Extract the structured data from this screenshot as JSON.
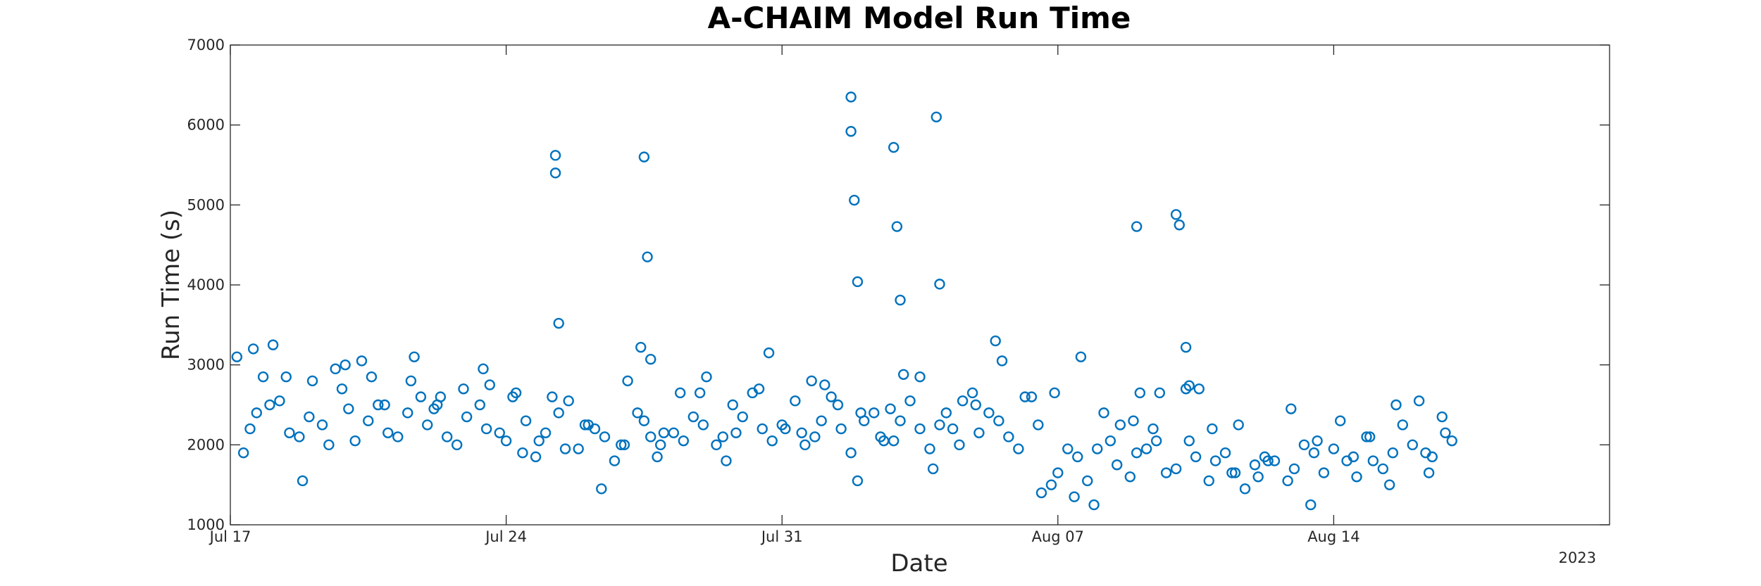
{
  "chart_data": {
    "type": "scatter",
    "title": "A-CHAIM Model Run Time",
    "xlabel": "Date",
    "ylabel": "Run Time (s)",
    "year_label": "2023",
    "xlim": [
      "2023-07-17",
      "2023-08-21"
    ],
    "ylim": [
      1000,
      7000
    ],
    "x_ticks": [
      {
        "date": "2023-07-17",
        "label": "Jul 17"
      },
      {
        "date": "2023-07-24",
        "label": "Jul 24"
      },
      {
        "date": "2023-07-31",
        "label": "Jul 31"
      },
      {
        "date": "2023-08-07",
        "label": "Aug 07"
      },
      {
        "date": "2023-08-14",
        "label": "Aug 14"
      }
    ],
    "y_ticks": [
      1000,
      2000,
      3000,
      4000,
      5000,
      6000,
      7000
    ],
    "grid": false,
    "marker": "open-circle",
    "marker_color": "#0072BD",
    "series": [
      {
        "x": [
          "2023-07-17 12:00",
          "2023-07-18 00:00",
          "2023-07-18 12:00",
          "2023-07-19 00:00",
          "2023-07-19 12:00",
          "2023-07-20 00:00",
          "2023-07-20 12:00",
          "2023-07-21 00:00",
          "2023-07-21 12:00",
          "2023-07-22 00:00",
          "2023-07-22 12:00",
          "2023-07-23 00:00",
          "2023-07-23 12:00",
          "2023-07-24 00:00",
          "2023-07-24 12:00",
          "2023-07-25 00:00",
          "2023-07-25 12:00",
          "2023-07-26 00:00",
          "2023-07-26 12:00",
          "2023-07-27 00:00",
          "2023-07-27 12:00",
          "2023-07-28 00:00",
          "2023-07-28 12:00",
          "2023-07-29 00:00",
          "2023-07-29 12:00",
          "2023-07-30 00:00",
          "2023-07-30 12:00",
          "2023-07-31 00:00",
          "2023-07-31 12:00",
          "2023-08-01 00:00",
          "2023-08-01 12:00",
          "2023-08-02 00:00",
          "2023-08-02 12:00",
          "2023-08-03 00:00",
          "2023-08-03 12:00",
          "2023-08-04 00:00",
          "2023-08-04 12:00",
          "2023-08-05 00:00",
          "2023-08-05 12:00",
          "2023-08-06 00:00",
          "2023-08-06 12:00",
          "2023-08-07 00:00",
          "2023-08-07 12:00",
          "2023-08-08 00:00",
          "2023-08-08 12:00",
          "2023-08-09 00:00",
          "2023-08-09 12:00",
          "2023-08-10 00:00",
          "2023-08-10 12:00",
          "2023-08-11 00:00",
          "2023-08-11 12:00",
          "2023-08-12 00:00",
          "2023-08-12 12:00",
          "2023-08-13 00:00",
          "2023-08-13 12:00",
          "2023-08-14 00:00",
          "2023-08-14 12:00",
          "2023-08-15 00:00",
          "2023-08-15 12:00",
          "2023-08-16 00:00",
          "2023-08-16 12:00",
          "2023-08-17 00:00"
        ],
        "y": [
          2200,
          2500,
          2150,
          2350,
          2000,
          2450,
          2300,
          2150,
          2400,
          2250,
          2100,
          2350,
          2200,
          2050,
          2300,
          2150,
          1950,
          2250,
          2100,
          2000,
          2300,
          2150,
          2050,
          2250,
          2100,
          2350,
          2200,
          2250,
          2150,
          2300,
          2200,
          2400,
          2100,
          2300,
          2200,
          2250,
          2000,
          2150,
          2300,
          1950,
          2250,
          1650,
          1850,
          1950,
          1750,
          1900,
          2050,
          1700,
          1850,
          1800,
          1650,
          1750,
          1800,
          1700,
          1900,
          1950,
          1850,
          1800,
          1900,
          2000,
          1850,
          2050
        ]
      },
      {
        "x": [
          "2023-07-17 08:00",
          "2023-07-17 16:00",
          "2023-07-18 06:00",
          "2023-07-18 18:00",
          "2023-07-19 08:00",
          "2023-07-19 20:00",
          "2023-07-20 04:00",
          "2023-07-20 18:00",
          "2023-07-21 06:00",
          "2023-07-21 20:00",
          "2023-07-22 04:00",
          "2023-07-22 18:00",
          "2023-07-23 08:00",
          "2023-07-23 20:00",
          "2023-07-24 06:00",
          "2023-07-24 18:00",
          "2023-07-25 08:00",
          "2023-07-25 20:00",
          "2023-07-26 06:00",
          "2023-07-26 18:00",
          "2023-07-27 08:00",
          "2023-07-27 20:00",
          "2023-07-28 06:00",
          "2023-07-28 18:00",
          "2023-07-29 08:00",
          "2023-07-29 20:00",
          "2023-07-30 06:00",
          "2023-07-30 18:00",
          "2023-07-31 08:00",
          "2023-07-31 20:00",
          "2023-08-01 06:00",
          "2023-08-01 18:00",
          "2023-08-02 08:00",
          "2023-08-02 20:00",
          "2023-08-03 06:00",
          "2023-08-03 18:00",
          "2023-08-04 08:00",
          "2023-08-04 20:00",
          "2023-08-05 06:00",
          "2023-08-05 18:00",
          "2023-08-06 08:00",
          "2023-08-06 20:00",
          "2023-08-07 06:00",
          "2023-08-07 18:00",
          "2023-08-08 08:00",
          "2023-08-08 20:00",
          "2023-08-09 06:00",
          "2023-08-09 18:00",
          "2023-08-10 08:00",
          "2023-08-10 20:00",
          "2023-08-11 06:00",
          "2023-08-11 18:00",
          "2023-08-12 08:00",
          "2023-08-12 20:00",
          "2023-08-13 06:00",
          "2023-08-13 18:00",
          "2023-08-14 08:00",
          "2023-08-14 20:00",
          "2023-08-15 06:00",
          "2023-08-15 18:00",
          "2023-08-16 08:00",
          "2023-08-16 20:00"
        ],
        "y": [
          1900,
          2400,
          2550,
          2100,
          2250,
          2700,
          2050,
          2500,
          2100,
          2600,
          2450,
          2000,
          2500,
          2150,
          2650,
          1850,
          2400,
          1950,
          2200,
          1800,
          2400,
          1850,
          2150,
          2350,
          2000,
          2150,
          2650,
          2050,
          2550,
          2100,
          2600,
          1900,
          2400,
          2050,
          2550,
          1950,
          2200,
          2650,
          2400,
          2100,
          2600,
          1500,
          1950,
          1550,
          2050,
          1600,
          1950,
          1650,
          2050,
          1550,
          1900,
          1450,
          1800,
          1550,
          2000,
          1650,
          1800,
          2100,
          1700,
          2250,
          1900,
          2150
        ]
      },
      {
        "x": [
          "2023-07-17 04:00",
          "2023-07-17 20:00",
          "2023-07-18 10:00",
          "2023-07-19 02:00",
          "2023-07-19 16:00",
          "2023-07-20 08:00",
          "2023-07-20 22:00",
          "2023-07-21 14:00",
          "2023-07-22 08:00",
          "2023-07-22 22:00",
          "2023-07-23 14:00",
          "2023-07-24 04:00",
          "2023-07-24 20:00",
          "2023-07-25 14:00",
          "2023-07-26 02:00",
          "2023-07-26 22:00",
          "2023-07-27 16:00",
          "2023-07-28 10:00",
          "2023-07-29 02:00",
          "2023-07-29 18:00",
          "2023-07-30 10:00",
          "2023-07-31 02:00",
          "2023-07-31 18:00",
          "2023-08-01 10:00",
          "2023-08-02 02:00",
          "2023-08-02 18:00",
          "2023-08-03 12:00",
          "2023-08-04 04:00",
          "2023-08-04 22:00",
          "2023-08-05 14:00",
          "2023-08-06 04:00",
          "2023-08-06 22:00",
          "2023-08-07 14:00",
          "2023-08-08 04:00",
          "2023-08-08 22:00",
          "2023-08-09 14:00",
          "2023-08-10 06:00",
          "2023-08-10 22:00",
          "2023-08-11 14:00",
          "2023-08-12 06:00",
          "2023-08-12 22:00",
          "2023-08-13 14:00",
          "2023-08-14 04:00",
          "2023-08-14 22:00",
          "2023-08-15 14:00",
          "2023-08-16 04:00",
          "2023-08-16 18:00"
        ],
        "y": [
          3100,
          2850,
          2850,
          2800,
          2950,
          3050,
          2500,
          2800,
          2600,
          2700,
          2750,
          2600,
          2050,
          2550,
          2250,
          2000,
          2100,
          2650,
          2850,
          2500,
          2700,
          2200,
          2800,
          2500,
          2300,
          2450,
          2850,
          2400,
          2500,
          3050,
          2600,
          2650,
          3100,
          2400,
          2300,
          2650,
          2700,
          2200,
          2250,
          1850,
          2450,
          2050,
          2300,
          2100,
          2500,
          2550,
          2350
        ]
      },
      {
        "x": [
          "2023-07-17 14:00",
          "2023-07-18 02:00",
          "2023-07-18 20:00",
          "2023-07-19 22:00",
          "2023-07-20 14:00",
          "2023-07-21 16:00",
          "2023-07-22 06:00",
          "2023-07-23 10:00",
          "2023-07-24 10:00",
          "2023-07-25 04:00",
          "2023-07-26 10:00",
          "2023-07-27 02:00",
          "2023-07-27 22:00",
          "2023-07-28 22:00",
          "2023-07-29 14:00",
          "2023-07-30 16:00",
          "2023-07-31 14:00",
          "2023-08-01 02:00",
          "2023-08-01 22:00",
          "2023-08-02 14:00",
          "2023-08-03 20:00",
          "2023-08-04 14:00",
          "2023-08-05 10:00",
          "2023-08-06 14:00",
          "2023-08-07 10:00",
          "2023-08-07 22:00",
          "2023-08-08 14:00",
          "2023-08-09 10:00",
          "2023-08-10 14:00",
          "2023-08-11 10:00",
          "2023-08-12 02:00",
          "2023-08-13 10:00",
          "2023-08-14 14:00",
          "2023-08-15 10:00",
          "2023-08-16 10:00"
        ],
        "y": [
          3200,
          3250,
          1550,
          3000,
          2850,
          3100,
          2500,
          2950,
          1900,
          2600,
          1450,
          2800,
          2000,
          2650,
          1800,
          3150,
          2000,
          2750,
          1550,
          2050,
          1700,
          2550,
          3300,
          1400,
          1350,
          1250,
          2250,
          2200,
          2700,
          1650,
          1600,
          1250,
          1600,
          1500,
          1650
        ]
      },
      {
        "x": [
          "2023-07-25 06:00",
          "2023-07-25 06:00",
          "2023-07-25 08:00",
          "2023-07-27 10:00",
          "2023-07-27 12:00",
          "2023-07-27 14:00",
          "2023-07-27 16:00",
          "2023-08-01 18:00",
          "2023-08-01 18:00",
          "2023-08-01 20:00",
          "2023-08-01 22:00",
          "2023-08-02 20:00",
          "2023-08-02 22:00",
          "2023-08-03 00:00",
          "2023-08-03 02:00",
          "2023-08-03 22:00",
          "2023-08-04 00:00",
          "2023-08-09 00:00",
          "2023-08-09 02:00",
          "2023-08-10 00:00",
          "2023-08-10 02:00",
          "2023-08-10 06:00",
          "2023-08-10 08:00"
        ],
        "y": [
          5620,
          5400,
          3520,
          3220,
          5600,
          4350,
          3070,
          6350,
          5920,
          5060,
          4040,
          5720,
          4730,
          3810,
          2880,
          6100,
          4010,
          4730,
          2650,
          4880,
          4750,
          3220,
          2740
        ]
      }
    ]
  }
}
